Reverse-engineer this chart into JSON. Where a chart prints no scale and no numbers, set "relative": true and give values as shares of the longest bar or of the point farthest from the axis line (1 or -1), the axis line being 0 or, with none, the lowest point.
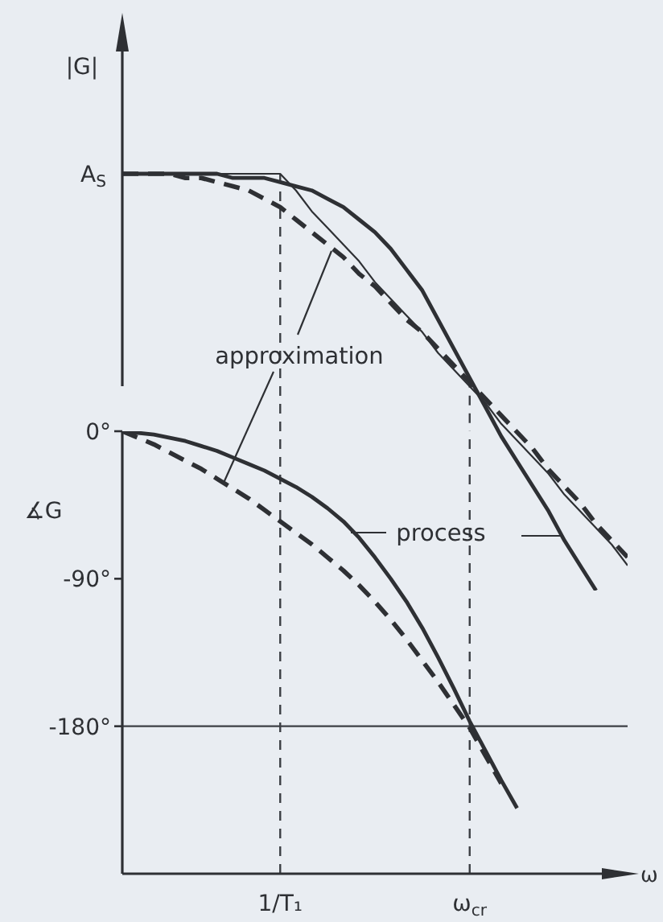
{
  "chart_data": [
    {
      "type": "line",
      "relative": true,
      "tick_labels": false,
      "ylabel": "|G|",
      "categories": [
        null,
        null,
        null,
        null,
        null,
        null,
        null,
        null,
        null,
        null,
        "1/T₁",
        null,
        null,
        null,
        null,
        null,
        null,
        null,
        null,
        null,
        null,
        null,
        "ω$_{cr}$",
        null,
        null,
        null,
        null,
        null,
        null,
        null,
        null,
        null,
        null
      ],
      "series": [
        {
          "color": "#2e3034",
          "line_style": "solid",
          "values": [
            1.0,
            1.0,
            1.0,
            1.0,
            1.0,
            1.0,
            1.0,
            0.99,
            0.99,
            0.99,
            0.98,
            0.97,
            0.96,
            0.94,
            0.92,
            0.89,
            0.86,
            0.82,
            0.77,
            0.72,
            0.65,
            0.58,
            0.51,
            0.44,
            0.37,
            0.31,
            0.25,
            0.19,
            0.12,
            0.06,
            0,
            null,
            null
          ]
        },
        {
          "color": "#2e3034",
          "line_style": "dashed",
          "values": [
            1.0,
            1.0,
            1.0,
            1.0,
            0.99,
            0.99,
            0.98,
            0.97,
            0.96,
            0.94,
            0.92,
            0.89,
            0.86,
            0.83,
            0.8,
            0.76,
            0.73,
            0.69,
            0.65,
            0.62,
            0.58,
            0.54,
            0.5,
            0.46,
            0.42,
            0.38,
            0.34,
            0.29,
            0.25,
            0.21,
            0.16,
            0.12,
            0.08
          ]
        },
        {
          "color": "#2e3034",
          "line_style": "solid",
          "values": [
            1,
            1,
            1,
            1,
            1,
            1,
            1,
            1,
            1,
            1,
            1,
            0.96,
            0.91,
            0.87,
            0.83,
            0.79,
            0.74,
            0.7,
            0.66,
            0.62,
            0.57,
            0.53,
            0.49,
            0.45,
            0.4,
            0.36,
            0.32,
            0.28,
            0.23,
            0.19,
            0.15,
            0.11,
            0.06
          ]
        }
      ],
      "ref_lines": [
        {
          "axis": "x",
          "value": "1/T₁",
          "color": "#3c3f44",
          "line_style": "dashed"
        },
        {
          "axis": "x",
          "value": "ω$_{cr}$",
          "color": "#3c3f44",
          "line_style": "dashed"
        }
      ],
      "annotations": [
        "A$_{S}$",
        "approximation"
      ]
    },
    {
      "type": "line",
      "ylabel": "∡G",
      "xlabel": "ω",
      "categories": [
        null,
        null,
        null,
        null,
        null,
        null,
        null,
        null,
        null,
        null,
        "1/T₁",
        null,
        null,
        null,
        null,
        null,
        null,
        null,
        null,
        null,
        null,
        null,
        "ω$_{cr}$",
        null,
        null,
        null,
        null,
        null,
        null,
        null,
        null,
        null,
        null
      ],
      "ylim": [
        -270,
        0
      ],
      "yticks": [
        {
          "value": 0,
          "label": "0°"
        },
        {
          "value": -90,
          "label": "-90°"
        },
        {
          "value": -180,
          "label": "-180°"
        }
      ],
      "series": [
        {
          "color": "#2e3034",
          "line_style": "solid",
          "values": [
            0,
            -1,
            -2,
            -4,
            -6,
            -9,
            -12,
            -16,
            -20,
            -24,
            -29,
            -34,
            -40,
            -47,
            -55,
            -65,
            -77,
            -90,
            -104,
            -120,
            -138,
            -157,
            -177,
            -195,
            -213,
            -230,
            null,
            null,
            null,
            null,
            null,
            null,
            null
          ]
        },
        {
          "color": "#2e3034",
          "line_style": "dashed",
          "values": [
            0,
            -4,
            -8,
            -13,
            -18,
            -23,
            -29,
            -35,
            -41,
            -48,
            -55,
            -62,
            -69,
            -77,
            -85,
            -94,
            -104,
            -115,
            -127,
            -140,
            -153,
            -167,
            -181,
            -198,
            -215,
            null,
            null,
            null,
            null,
            null,
            null,
            null,
            null
          ]
        }
      ],
      "ref_lines": [
        {
          "axis": "x",
          "value": "1/T₁",
          "color": "#3c3f44",
          "line_style": "dashed"
        },
        {
          "axis": "x",
          "value": "ω$_{cr}$",
          "color": "#3c3f44",
          "line_style": "dashed"
        },
        {
          "axis": "y",
          "value": -180,
          "color": "#3c3f44",
          "line_style": "solid"
        }
      ],
      "annotations": [
        "process"
      ]
    }
  ]
}
